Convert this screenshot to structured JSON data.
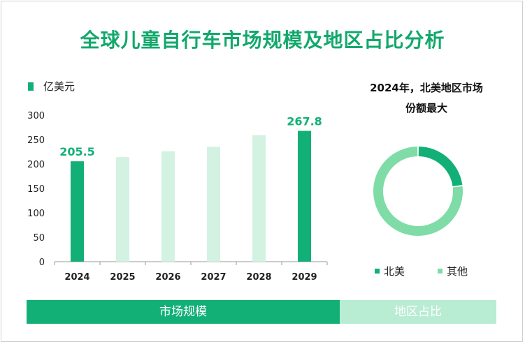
{
  "title": "全球儿童自行车市场规模及地区占比分析",
  "colors": {
    "accent": "#12b077",
    "light": "#d3f2e2",
    "tab_inactive": "#b8ecd3",
    "donut_light": "#7fdca7"
  },
  "bar_unit": "亿美元",
  "donut_note_line1": "2024年，北美地区市场",
  "donut_note_line2": "份额最大",
  "tabs": [
    {
      "label": "市场规模",
      "active": true
    },
    {
      "label": "地区占比",
      "active": false
    }
  ],
  "chart_data": [
    {
      "type": "bar",
      "categories": [
        "2024",
        "2025",
        "2026",
        "2027",
        "2028",
        "2029"
      ],
      "values": [
        205.5,
        214,
        226,
        235,
        259,
        267.8
      ],
      "highlight": [
        true,
        false,
        false,
        false,
        false,
        true
      ],
      "data_labels": [
        "205.5",
        "",
        "",
        "",
        "",
        "267.8"
      ],
      "ylim": [
        0,
        300
      ],
      "yticks": [
        0,
        50,
        100,
        150,
        200,
        250,
        300
      ],
      "unit": "亿美元",
      "grid": false
    },
    {
      "type": "pie",
      "donut": true,
      "categories": [
        "北美",
        "其他"
      ],
      "values": [
        23,
        77
      ],
      "colors": [
        "#12b077",
        "#7fdca7"
      ],
      "legend_position": "bottom"
    }
  ]
}
